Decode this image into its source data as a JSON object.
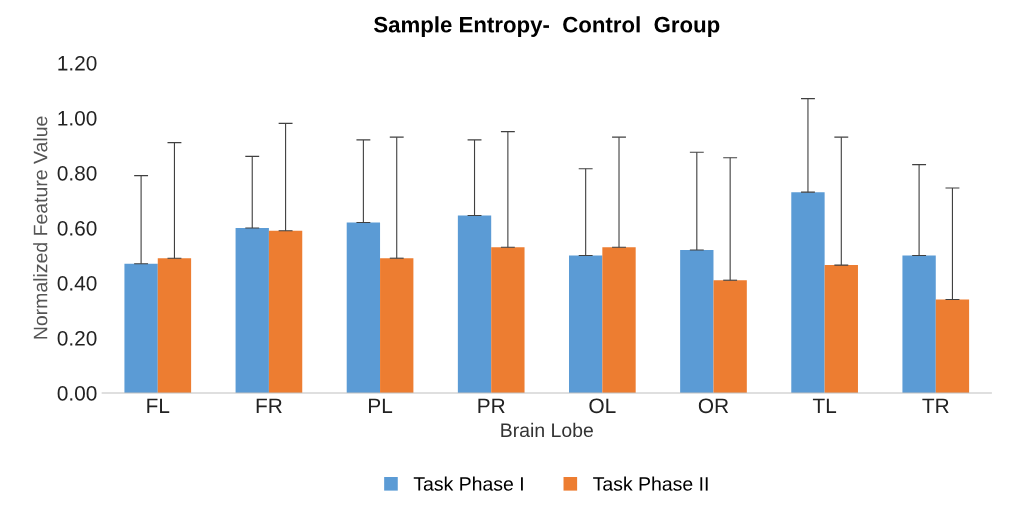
{
  "chart_data": {
    "type": "bar",
    "title": "Sample Entropy-  Control  Group",
    "xlabel": "Brain Lobe",
    "ylabel": "Normalized Feature Value",
    "categories": [
      "FL",
      "FR",
      "PL",
      "PR",
      "OL",
      "OR",
      "TL",
      "TR"
    ],
    "series": [
      {
        "name": "Task Phase I",
        "color": "#5b9bd5",
        "values": [
          0.47,
          0.6,
          0.62,
          0.645,
          0.5,
          0.52,
          0.73,
          0.5
        ],
        "errors": [
          [
            0.47,
            0.79
          ],
          [
            0.6,
            0.86
          ],
          [
            0.62,
            0.92
          ],
          [
            0.645,
            0.92
          ],
          [
            0.5,
            0.815
          ],
          [
            0.52,
            0.875
          ],
          [
            0.73,
            1.07
          ],
          [
            0.5,
            0.83
          ]
        ]
      },
      {
        "name": "Task Phase II",
        "color": "#ed7d31",
        "values": [
          0.49,
          0.59,
          0.49,
          0.53,
          0.53,
          0.41,
          0.465,
          0.34
        ],
        "errors": [
          [
            0.49,
            0.91
          ],
          [
            0.59,
            0.98
          ],
          [
            0.49,
            0.93
          ],
          [
            0.53,
            0.95
          ],
          [
            0.53,
            0.93
          ],
          [
            0.41,
            0.855
          ],
          [
            0.465,
            0.93
          ],
          [
            0.34,
            0.745
          ]
        ]
      }
    ],
    "ylim": [
      0,
      1.2
    ],
    "yticks": [
      {
        "value": 0,
        "label": "0.00"
      },
      {
        "value": 0.2,
        "label": "0.20"
      },
      {
        "value": 0.4,
        "label": "0.40"
      },
      {
        "value": 0.6,
        "label": "0.60"
      },
      {
        "value": 0.8,
        "label": "0.80"
      },
      {
        "value": 1.0,
        "label": "1.00"
      },
      {
        "value": 1.2,
        "label": "1.20"
      }
    ],
    "grid": false,
    "legend": "bottom"
  }
}
